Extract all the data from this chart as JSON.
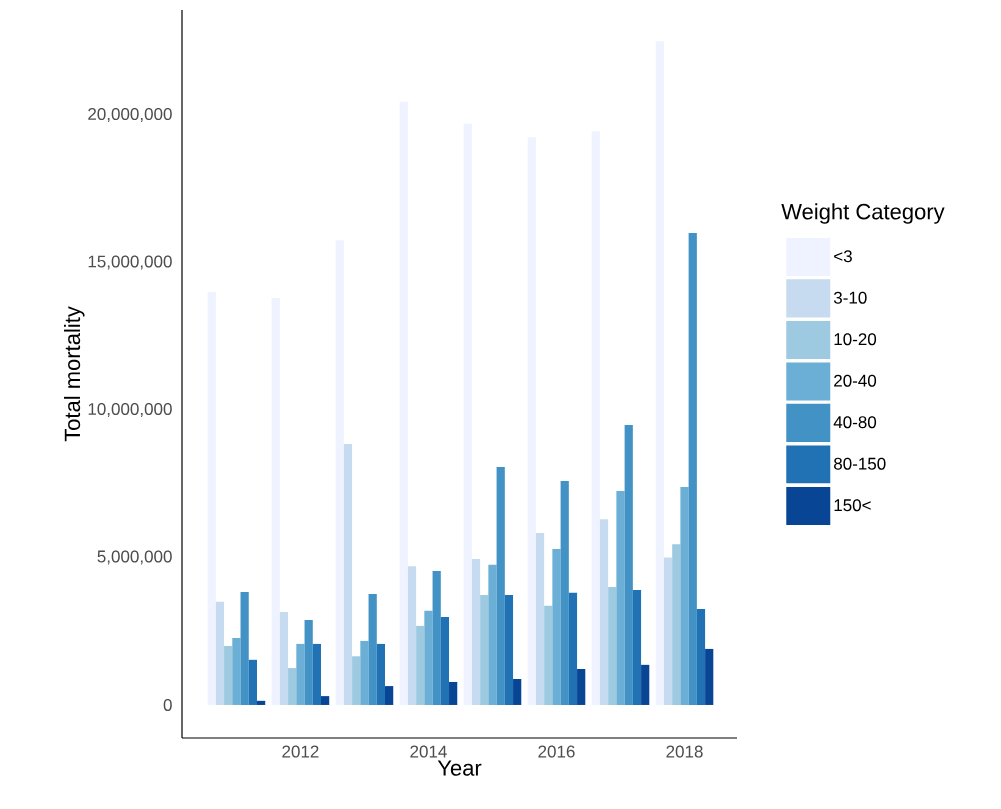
{
  "chart_data": {
    "type": "bar",
    "xlabel": "Year",
    "ylabel": "Total mortality",
    "legend_title": "Weight Category",
    "legend": "right",
    "x": [
      2011,
      2012,
      2013,
      2014,
      2015,
      2016,
      2017,
      2018
    ],
    "xlim": [
      2010.15,
      2018.82
    ],
    "xticks": [
      2012,
      2014,
      2016,
      2018
    ],
    "ylim": [
      -1120000,
      23560000
    ],
    "yticks": [
      {
        "value": 0,
        "label": "0"
      },
      {
        "value": 5000000,
        "label": "5,000,000"
      },
      {
        "value": 10000000,
        "label": "10,000,000"
      },
      {
        "value": 15000000,
        "label": "15,000,000"
      },
      {
        "value": 20000000,
        "label": "20,000,000"
      }
    ],
    "series": [
      {
        "name": "<3",
        "color": "#eff3ff",
        "values": [
          14000000,
          13800000,
          15750000,
          20450000,
          19700000,
          19250000,
          19450000,
          22500000
        ]
      },
      {
        "name": "3-10",
        "color": "#c6dbef",
        "values": [
          3500000,
          3150000,
          8850000,
          4700000,
          4950000,
          5830000,
          6300000,
          5000000
        ]
      },
      {
        "name": "10-20",
        "color": "#9ecae1",
        "values": [
          2000000,
          1250000,
          1650000,
          2680000,
          3730000,
          3360000,
          4000000,
          5450000
        ]
      },
      {
        "name": "20-40",
        "color": "#6baed6",
        "values": [
          2270000,
          2070000,
          2170000,
          3190000,
          4750000,
          5290000,
          7250000,
          7390000
        ]
      },
      {
        "name": "40-80",
        "color": "#4292c6",
        "values": [
          3830000,
          2880000,
          3760000,
          4540000,
          8070000,
          7590000,
          9490000,
          16000000
        ]
      },
      {
        "name": "80-150",
        "color": "#2171b5",
        "values": [
          1530000,
          2070000,
          2070000,
          2980000,
          3730000,
          3800000,
          3900000,
          3250000
        ]
      },
      {
        "name": "150<",
        "color": "#084594",
        "values": [
          140000,
          300000,
          640000,
          780000,
          880000,
          1220000,
          1360000,
          1900000
        ]
      }
    ]
  }
}
